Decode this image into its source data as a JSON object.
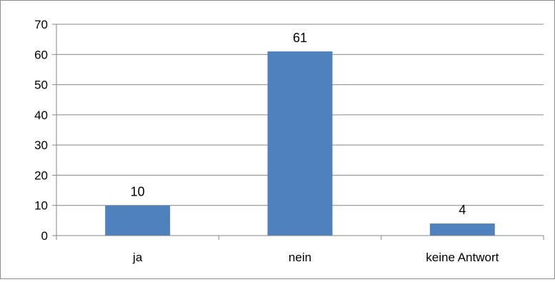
{
  "chart_data": {
    "type": "bar",
    "title": "",
    "xlabel": "",
    "ylabel": "",
    "categories": [
      "ja",
      "nein",
      "keine Antwort"
    ],
    "values": [
      10,
      61,
      4
    ],
    "data_labels": [
      "10",
      "61",
      "4"
    ],
    "ylim": [
      0,
      70
    ],
    "yticks": [
      0,
      10,
      20,
      30,
      40,
      50,
      60,
      70
    ],
    "grid": true,
    "legend": "none",
    "bar_color": "#4f81bd",
    "grid_color": "#868686"
  }
}
